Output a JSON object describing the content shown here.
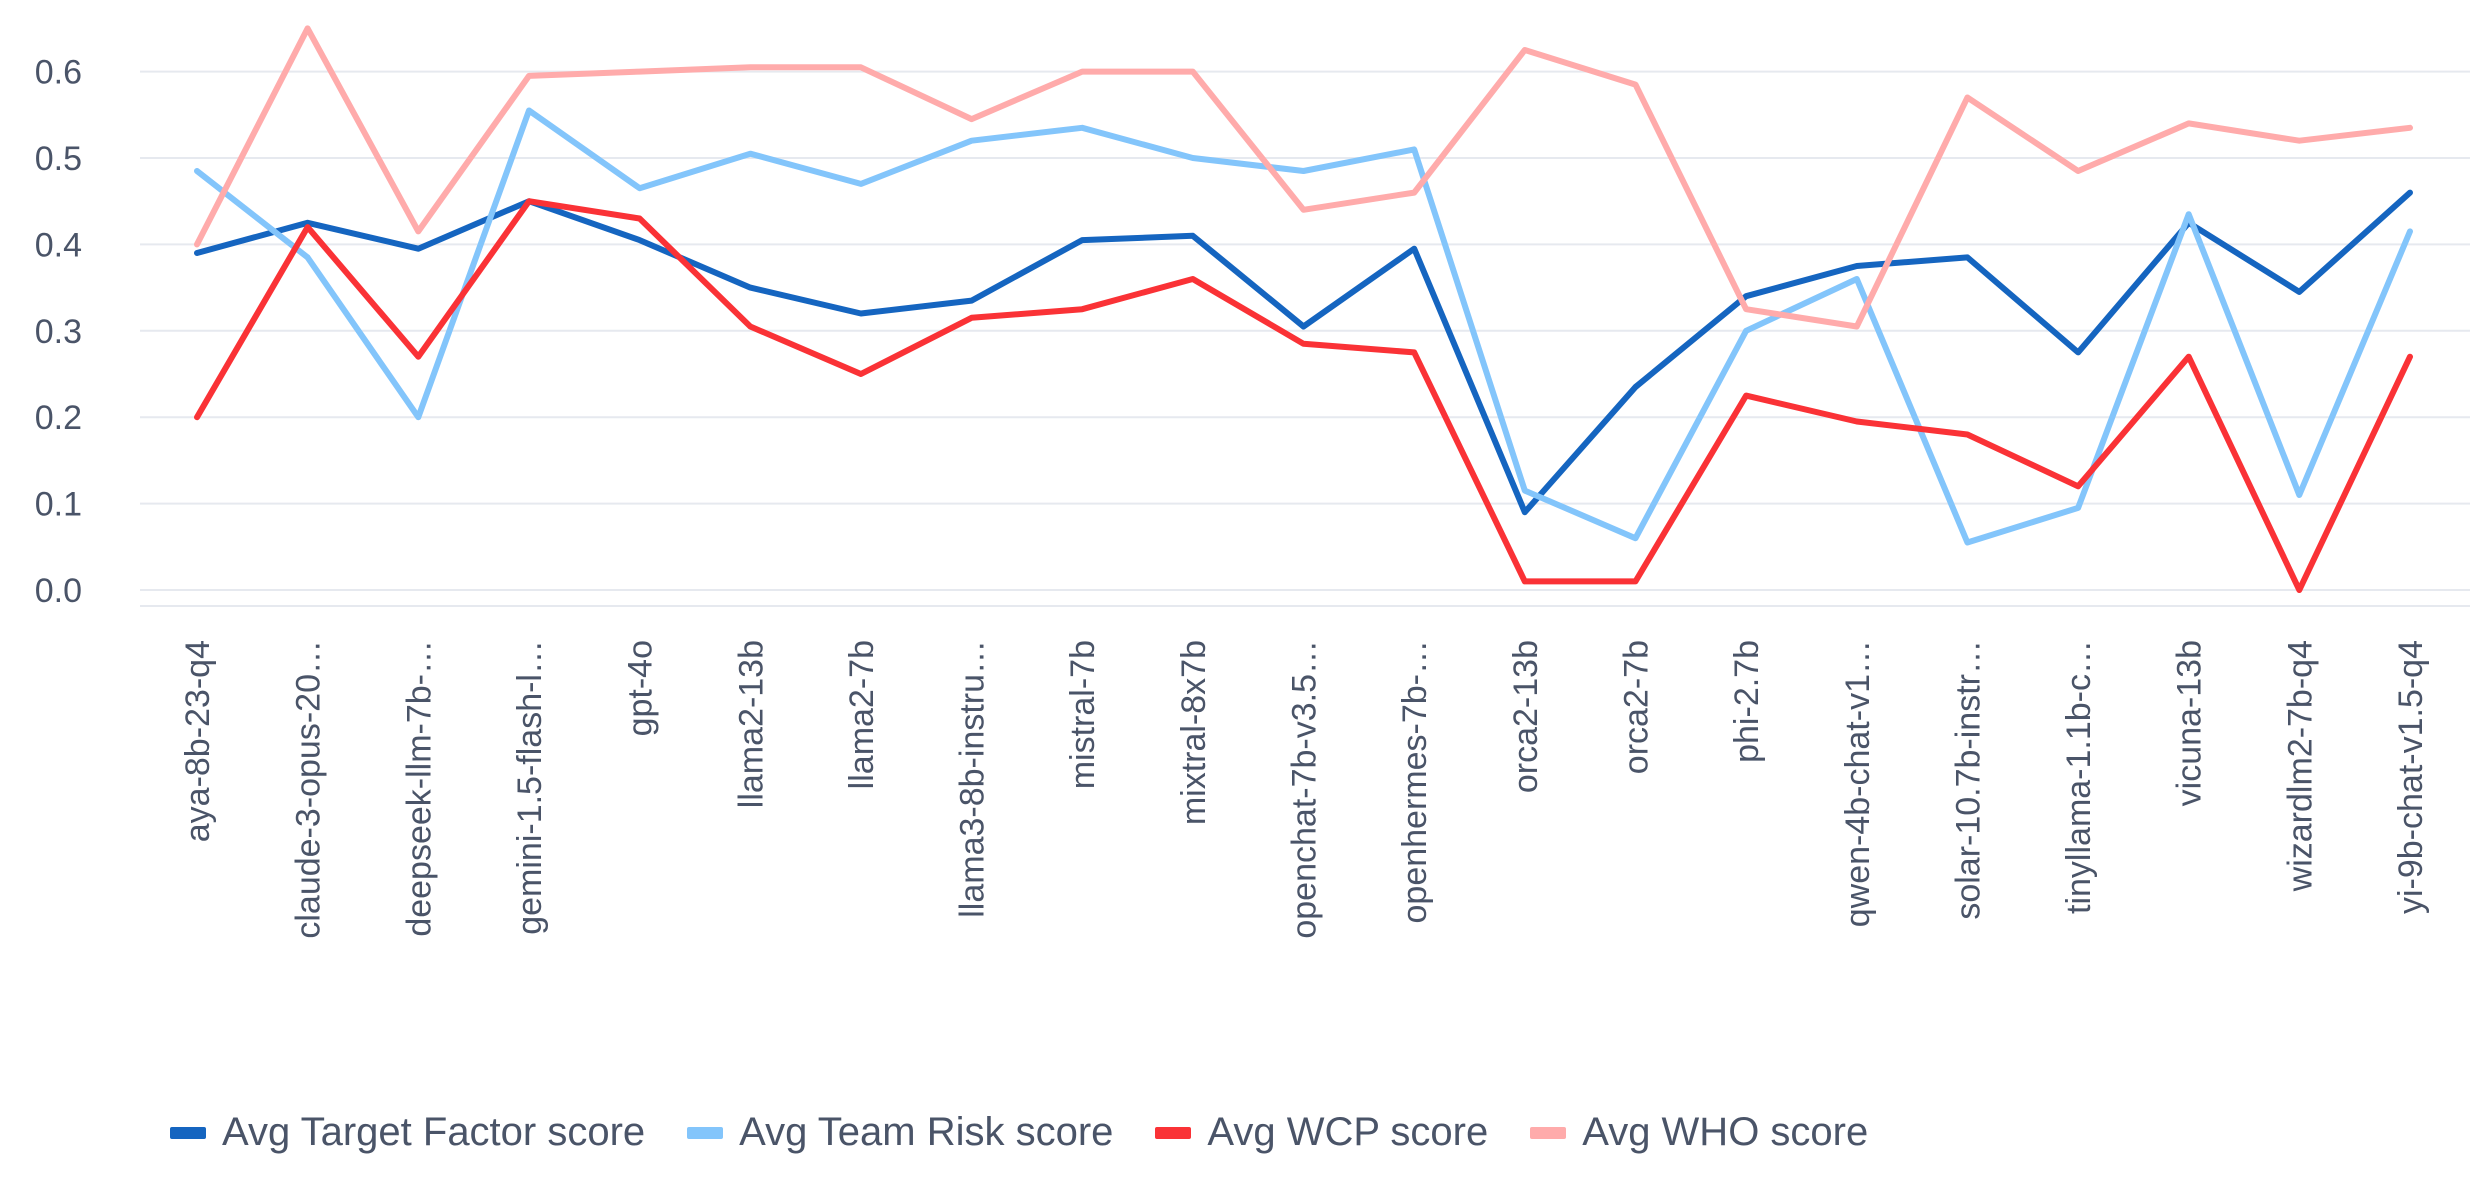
{
  "chart_data": {
    "type": "line",
    "title": "",
    "xlabel": "",
    "ylabel": "",
    "ylim": [
      0.0,
      0.65
    ],
    "yticks": [
      0.0,
      0.1,
      0.2,
      0.3,
      0.4,
      0.5,
      0.6
    ],
    "ytick_labels": [
      "0.0",
      "0.1",
      "0.2",
      "0.3",
      "0.4",
      "0.5",
      "0.6"
    ],
    "grid": true,
    "legend_position": "bottom-left",
    "categories": [
      "aya-8b-23-q4",
      "claude-3-opus-20…",
      "deepseek-llm-7b-…",
      "gemini-1.5-flash-l…",
      "gpt-4o",
      "llama2-13b",
      "llama2-7b",
      "llama3-8b-instru…",
      "mistral-7b",
      "mixtral-8x7b",
      "openchat-7b-v3.5…",
      "openhermes-7b-…",
      "orca2-13b",
      "orca2-7b",
      "phi-2.7b",
      "qwen-4b-chat-v1…",
      "solar-10.7b-instr…",
      "tinyllama-1.1b-c…",
      "vicuna-13b",
      "wizardlm2-7b-q4",
      "yi-9b-chat-v1.5-q4"
    ],
    "series": [
      {
        "name": "Avg Target Factor score",
        "color": "#1565c0",
        "values": [
          0.39,
          0.425,
          0.395,
          0.45,
          0.405,
          0.35,
          0.32,
          0.335,
          0.405,
          0.41,
          0.305,
          0.395,
          0.09,
          0.235,
          0.34,
          0.375,
          0.385,
          0.275,
          0.425,
          0.345,
          0.46
        ]
      },
      {
        "name": "Avg Team Risk score",
        "color": "#83c5fb",
        "values": [
          0.485,
          0.385,
          0.2,
          0.555,
          0.465,
          0.505,
          0.47,
          0.52,
          0.535,
          0.5,
          0.485,
          0.51,
          0.115,
          0.06,
          0.3,
          0.36,
          0.055,
          0.095,
          0.435,
          0.11,
          0.415
        ]
      },
      {
        "name": "Avg WCP score",
        "color": "#fa3236",
        "values": [
          0.2,
          0.42,
          0.27,
          0.45,
          0.43,
          0.305,
          0.25,
          0.315,
          0.325,
          0.36,
          0.285,
          0.275,
          0.01,
          0.01,
          0.225,
          0.195,
          0.18,
          0.12,
          0.27,
          0.0,
          0.27
        ]
      },
      {
        "name": "Avg WHO score",
        "color": "#ffabab",
        "values": [
          0.4,
          0.65,
          0.415,
          0.595,
          0.6,
          0.605,
          0.605,
          0.545,
          0.6,
          0.6,
          0.44,
          0.46,
          0.625,
          0.585,
          0.325,
          0.305,
          0.57,
          0.485,
          0.54,
          0.52,
          0.535
        ]
      }
    ]
  }
}
